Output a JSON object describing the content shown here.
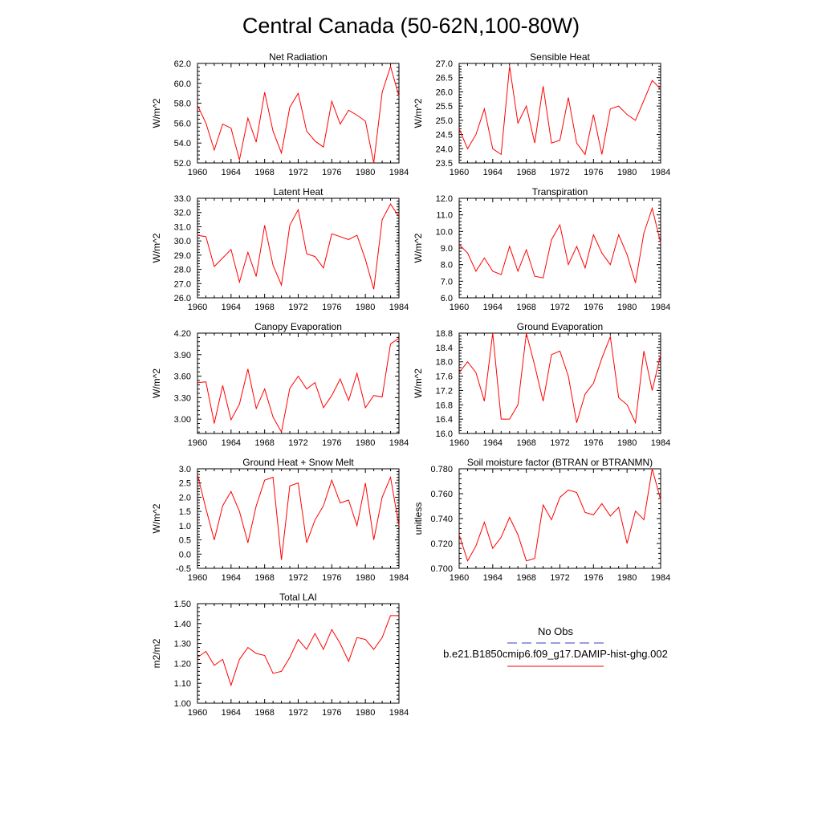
{
  "figure": {
    "title": "Central Canada (50-62N,100-80W)",
    "series_color": "#ff0000",
    "obs_color": "#3a3acc"
  },
  "legend": {
    "obs_label": "No Obs",
    "model_label": "b.e21.B1850cmip6.f09_g17.DAMIP-hist-ghg.002"
  },
  "chart_data": [
    {
      "type": "line",
      "title": "Net Radiation",
      "xlabel": "",
      "ylabel": "W/m^2",
      "xlim": [
        1960,
        1984
      ],
      "ylim": [
        52.0,
        62.0
      ],
      "xticks": [
        "1960",
        "1964",
        "1968",
        "1972",
        "1976",
        "1980",
        "1984"
      ],
      "yticks": [
        "52.0",
        "54.0",
        "56.0",
        "58.0",
        "60.0",
        "62.0"
      ],
      "x": [
        1960,
        1961,
        1962,
        1963,
        1964,
        1965,
        1966,
        1967,
        1968,
        1969,
        1970,
        1971,
        1972,
        1973,
        1974,
        1975,
        1976,
        1977,
        1978,
        1979,
        1980,
        1981,
        1982,
        1983,
        1984
      ],
      "series": [
        {
          "values": [
            57.8,
            56.0,
            53.3,
            55.9,
            55.5,
            52.3,
            56.5,
            54.1,
            59.1,
            55.2,
            53.0,
            57.6,
            59.0,
            55.2,
            54.2,
            53.6,
            58.2,
            55.9,
            57.3,
            56.8,
            56.2,
            52.0,
            59.1,
            61.7,
            58.7
          ]
        }
      ]
    },
    {
      "type": "line",
      "title": "Sensible Heat",
      "xlabel": "",
      "ylabel": "W/m^2",
      "xlim": [
        1960,
        1984
      ],
      "ylim": [
        23.5,
        27.0
      ],
      "xticks": [
        "1960",
        "1964",
        "1968",
        "1972",
        "1976",
        "1980",
        "1984"
      ],
      "yticks": [
        "23.5",
        "24.0",
        "24.5",
        "25.0",
        "25.5",
        "26.0",
        "26.5",
        "27.0"
      ],
      "x": [
        1960,
        1961,
        1962,
        1963,
        1964,
        1965,
        1966,
        1967,
        1968,
        1969,
        1970,
        1971,
        1972,
        1973,
        1974,
        1975,
        1976,
        1977,
        1978,
        1979,
        1980,
        1981,
        1982,
        1983,
        1984
      ],
      "series": [
        {
          "values": [
            24.7,
            24.0,
            24.5,
            25.4,
            24.0,
            23.8,
            26.9,
            24.9,
            25.5,
            24.2,
            26.2,
            24.2,
            24.3,
            25.8,
            24.2,
            23.8,
            25.2,
            23.8,
            25.4,
            25.5,
            25.2,
            25.0,
            25.7,
            26.4,
            26.1
          ]
        }
      ]
    },
    {
      "type": "line",
      "title": "Latent Heat",
      "xlabel": "",
      "ylabel": "W/m^2",
      "xlim": [
        1960,
        1984
      ],
      "ylim": [
        26.0,
        33.0
      ],
      "xticks": [
        "1960",
        "1964",
        "1968",
        "1972",
        "1976",
        "1980",
        "1984"
      ],
      "yticks": [
        "26.0",
        "27.0",
        "28.0",
        "29.0",
        "30.0",
        "31.0",
        "32.0",
        "33.0"
      ],
      "x": [
        1960,
        1961,
        1962,
        1963,
        1964,
        1965,
        1966,
        1967,
        1968,
        1969,
        1970,
        1971,
        1972,
        1973,
        1974,
        1975,
        1976,
        1977,
        1978,
        1979,
        1980,
        1981,
        1982,
        1983,
        1984
      ],
      "series": [
        {
          "values": [
            30.4,
            30.3,
            28.2,
            28.8,
            29.4,
            27.1,
            29.2,
            27.5,
            31.1,
            28.3,
            26.9,
            31.1,
            32.2,
            29.1,
            28.9,
            28.1,
            30.5,
            30.3,
            30.1,
            30.4,
            28.7,
            26.6,
            31.5,
            32.6,
            31.7
          ]
        }
      ]
    },
    {
      "type": "line",
      "title": "Transpiration",
      "xlabel": "",
      "ylabel": "W/m^2",
      "xlim": [
        1960,
        1984
      ],
      "ylim": [
        6.0,
        12.0
      ],
      "xticks": [
        "1960",
        "1964",
        "1968",
        "1972",
        "1976",
        "1980",
        "1984"
      ],
      "yticks": [
        "6.0",
        "7.0",
        "8.0",
        "9.0",
        "10.0",
        "11.0",
        "12.0"
      ],
      "x": [
        1960,
        1961,
        1962,
        1963,
        1964,
        1965,
        1966,
        1967,
        1968,
        1969,
        1970,
        1971,
        1972,
        1973,
        1974,
        1975,
        1976,
        1977,
        1978,
        1979,
        1980,
        1981,
        1982,
        1983,
        1984
      ],
      "series": [
        {
          "values": [
            9.2,
            8.7,
            7.6,
            8.4,
            7.6,
            7.4,
            9.1,
            7.6,
            8.9,
            7.3,
            7.2,
            9.5,
            10.4,
            8.0,
            9.1,
            7.8,
            9.8,
            8.7,
            8.0,
            9.8,
            8.6,
            6.9,
            9.9,
            11.4,
            9.3
          ]
        }
      ]
    },
    {
      "type": "line",
      "title": "Canopy Evaporation",
      "xlabel": "",
      "ylabel": "W/m^2",
      "xlim": [
        1960,
        1984
      ],
      "ylim": [
        2.8,
        4.2
      ],
      "xticks": [
        "1960",
        "1964",
        "1968",
        "1972",
        "1976",
        "1980",
        "1984"
      ],
      "yticks": [
        "3.00",
        "3.30",
        "3.60",
        "3.90",
        "4.20"
      ],
      "x": [
        1960,
        1961,
        1962,
        1963,
        1964,
        1965,
        1966,
        1967,
        1968,
        1969,
        1970,
        1971,
        1972,
        1973,
        1974,
        1975,
        1976,
        1977,
        1978,
        1979,
        1980,
        1981,
        1982,
        1983,
        1984
      ],
      "series": [
        {
          "values": [
            3.51,
            3.52,
            2.94,
            3.47,
            2.99,
            3.21,
            3.7,
            3.15,
            3.42,
            3.03,
            2.82,
            3.43,
            3.6,
            3.42,
            3.51,
            3.16,
            3.33,
            3.56,
            3.26,
            3.64,
            3.16,
            3.33,
            3.31,
            4.05,
            4.13
          ]
        }
      ]
    },
    {
      "type": "line",
      "title": "Ground Evaporation",
      "xlabel": "",
      "ylabel": "W/m^2",
      "xlim": [
        1960,
        1984
      ],
      "ylim": [
        16.0,
        18.8
      ],
      "xticks": [
        "1960",
        "1964",
        "1968",
        "1972",
        "1976",
        "1980",
        "1984"
      ],
      "yticks": [
        "16.0",
        "16.4",
        "16.8",
        "17.2",
        "17.6",
        "18.0",
        "18.4",
        "18.8"
      ],
      "x": [
        1960,
        1961,
        1962,
        1963,
        1964,
        1965,
        1966,
        1967,
        1968,
        1969,
        1970,
        1971,
        1972,
        1973,
        1974,
        1975,
        1976,
        1977,
        1978,
        1979,
        1980,
        1981,
        1982,
        1983,
        1984
      ],
      "series": [
        {
          "values": [
            17.7,
            18.0,
            17.7,
            16.9,
            18.8,
            16.4,
            16.4,
            16.8,
            18.8,
            17.9,
            16.9,
            18.2,
            18.3,
            17.6,
            16.3,
            17.1,
            17.4,
            18.1,
            18.7,
            17.0,
            16.8,
            16.3,
            18.3,
            17.2,
            18.2
          ]
        }
      ]
    },
    {
      "type": "line",
      "title": "Ground Heat + Snow Melt",
      "xlabel": "",
      "ylabel": "W/m^2",
      "xlim": [
        1960,
        1984
      ],
      "ylim": [
        -0.5,
        3.0
      ],
      "xticks": [
        "1960",
        "1964",
        "1968",
        "1972",
        "1976",
        "1980",
        "1984"
      ],
      "yticks": [
        "-0.5",
        "0.0",
        "0.5",
        "1.0",
        "1.5",
        "2.0",
        "2.5",
        "3.0"
      ],
      "x": [
        1960,
        1961,
        1962,
        1963,
        1964,
        1965,
        1966,
        1967,
        1968,
        1969,
        1970,
        1971,
        1972,
        1973,
        1974,
        1975,
        1976,
        1977,
        1978,
        1979,
        1980,
        1981,
        1982,
        1983,
        1984
      ],
      "series": [
        {
          "values": [
            2.8,
            1.6,
            0.5,
            1.7,
            2.2,
            1.5,
            0.4,
            1.7,
            2.6,
            2.7,
            -0.2,
            2.4,
            2.5,
            0.4,
            1.2,
            1.7,
            2.6,
            1.8,
            1.9,
            1.0,
            2.5,
            0.5,
            2.0,
            2.7,
            1.0
          ]
        }
      ]
    },
    {
      "type": "line",
      "title": "Soil moisture factor (BTRAN or BTRANMN)",
      "xlabel": "",
      "ylabel": "unitless",
      "xlim": [
        1960,
        1984
      ],
      "ylim": [
        0.7,
        0.78
      ],
      "xticks": [
        "1960",
        "1964",
        "1968",
        "1972",
        "1976",
        "1980",
        "1984"
      ],
      "yticks": [
        "0.700",
        "0.720",
        "0.740",
        "0.760",
        "0.780"
      ],
      "x": [
        1960,
        1961,
        1962,
        1963,
        1964,
        1965,
        1966,
        1967,
        1968,
        1969,
        1970,
        1971,
        1972,
        1973,
        1974,
        1975,
        1976,
        1977,
        1978,
        1979,
        1980,
        1981,
        1982,
        1983,
        1984
      ],
      "series": [
        {
          "values": [
            0.727,
            0.706,
            0.718,
            0.737,
            0.716,
            0.725,
            0.741,
            0.727,
            0.706,
            0.708,
            0.751,
            0.739,
            0.757,
            0.763,
            0.761,
            0.745,
            0.743,
            0.752,
            0.742,
            0.749,
            0.72,
            0.746,
            0.739,
            0.78,
            0.755
          ]
        }
      ]
    },
    {
      "type": "line",
      "title": "Total LAI",
      "xlabel": "",
      "ylabel": "m2/m2",
      "xlim": [
        1960,
        1984
      ],
      "ylim": [
        1.0,
        1.5
      ],
      "xticks": [
        "1960",
        "1964",
        "1968",
        "1972",
        "1976",
        "1980",
        "1984"
      ],
      "yticks": [
        "1.00",
        "1.10",
        "1.20",
        "1.30",
        "1.40",
        "1.50"
      ],
      "x": [
        1960,
        1961,
        1962,
        1963,
        1964,
        1965,
        1966,
        1967,
        1968,
        1969,
        1970,
        1971,
        1972,
        1973,
        1974,
        1975,
        1976,
        1977,
        1978,
        1979,
        1980,
        1981,
        1982,
        1983,
        1984
      ],
      "series": [
        {
          "values": [
            1.23,
            1.26,
            1.19,
            1.22,
            1.09,
            1.22,
            1.28,
            1.25,
            1.24,
            1.15,
            1.16,
            1.23,
            1.32,
            1.27,
            1.35,
            1.27,
            1.37,
            1.3,
            1.21,
            1.33,
            1.32,
            1.27,
            1.33,
            1.44,
            1.44
          ]
        }
      ]
    }
  ]
}
